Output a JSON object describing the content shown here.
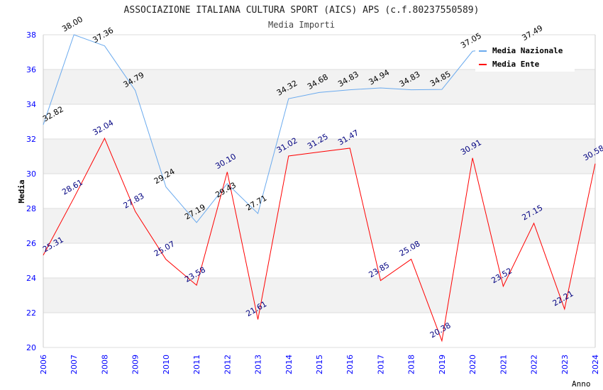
{
  "chart_data": {
    "type": "line",
    "title": "ASSOCIAZIONE ITALIANA CULTURA SPORT (AICS) APS (c.f.80237550589)",
    "subtitle": "Media Importi",
    "xlabel": "Anno",
    "ylabel": "Media",
    "ylim": [
      20,
      38
    ],
    "yticks": [
      20,
      22,
      24,
      26,
      28,
      30,
      32,
      34,
      36,
      38
    ],
    "x": [
      2006,
      2007,
      2008,
      2009,
      2010,
      2011,
      2012,
      2013,
      2014,
      2015,
      2016,
      2017,
      2018,
      2019,
      2020,
      2021,
      2022,
      2023,
      2024
    ],
    "legend": "top-right",
    "series": [
      {
        "name": "Media Nazionale",
        "color": "#6aaaee",
        "label_color": "#000000",
        "values": [
          32.82,
          38.0,
          37.36,
          34.79,
          29.24,
          27.19,
          29.43,
          27.71,
          34.32,
          34.68,
          34.83,
          34.94,
          34.83,
          34.85,
          37.05,
          null,
          37.49,
          null,
          null
        ]
      },
      {
        "name": "Media Ente",
        "color": "#ff0000",
        "label_color": "#000080",
        "values": [
          25.31,
          28.61,
          32.04,
          27.83,
          25.07,
          23.58,
          30.1,
          21.61,
          31.02,
          31.25,
          31.47,
          23.85,
          25.08,
          20.38,
          30.91,
          23.52,
          27.15,
          22.21,
          30.58
        ]
      }
    ]
  }
}
